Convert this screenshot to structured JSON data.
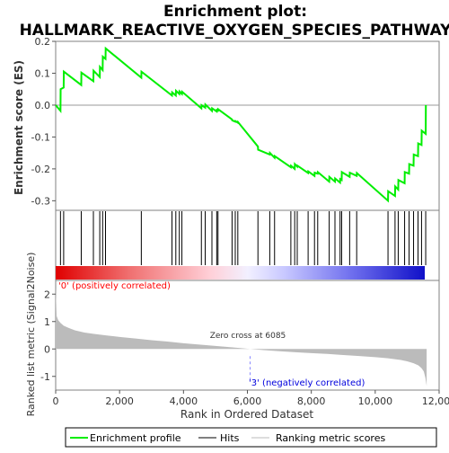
{
  "chart_data": {
    "type": "line",
    "title": "Enrichment plot:\nHALLMARK_REACTIVE_OXYGEN_SPECIES_PATHWAY",
    "title_lines": [
      "Enrichment plot:",
      "HALLMARK_REACTIVE_OXYGEN_SPECIES_PATHWAY"
    ],
    "xlabel": "Rank in Ordered Dataset",
    "xlim": [
      0,
      12000
    ],
    "x_ticks": [
      0,
      2000,
      4000,
      6000,
      8000,
      10000,
      12000
    ],
    "x_tick_labels": [
      "0",
      "2,000",
      "4,000",
      "6,000",
      "8,000",
      "10,000",
      "12,000"
    ],
    "panels": {
      "es": {
        "ylabel": "Enrichment score (ES)",
        "ylim": [
          -0.33,
          0.2
        ],
        "y_ticks": [
          0.2,
          0.1,
          0.0,
          -0.1,
          -0.2,
          -0.3
        ],
        "y_tick_labels": [
          "0.2",
          "0.1",
          "0.0",
          "-0.1",
          "-0.2",
          "-0.3"
        ],
        "zero_line": 0
      },
      "metric": {
        "ylabel": "Ranked list metric (Signal2Noise)",
        "ylim": [
          -1.5,
          2.5
        ],
        "y_ticks": [
          2,
          1,
          0,
          -1
        ],
        "y_tick_labels": [
          "2",
          "1",
          "0",
          "-1"
        ],
        "zero_cross_label": "Zero cross at 6085",
        "zero_cross_at": 6085,
        "positive_label": "'0' (positively correlated)",
        "negative_label": "'3' (negatively correlated)"
      }
    },
    "series": [
      {
        "name": "Enrichment profile",
        "color": "#00ee00",
        "x": [
          0,
          150,
          155,
          250,
          255,
          800,
          805,
          1180,
          1185,
          1380,
          1385,
          1470,
          1475,
          1560,
          1565,
          2680,
          2685,
          3640,
          3645,
          3760,
          3765,
          3870,
          3875,
          3950,
          3955,
          4560,
          4565,
          4680,
          4685,
          4890,
          4895,
          5040,
          5045,
          5080,
          5085,
          5520,
          5525,
          5620,
          5625,
          5700,
          5705,
          6330,
          6335,
          6700,
          6705,
          6850,
          6855,
          7360,
          7365,
          7480,
          7485,
          7560,
          7565,
          7900,
          7905,
          8100,
          8105,
          8200,
          8205,
          8560,
          8565,
          8740,
          8745,
          8900,
          8905,
          8950,
          8955,
          9200,
          9205,
          9420,
          9425,
          10400,
          10405,
          10620,
          10625,
          10720,
          10725,
          10920,
          10925,
          11060,
          11065,
          11200,
          11205,
          11340,
          11345,
          11450,
          11455,
          11580,
          11585
        ],
        "y": [
          0.0,
          -0.018,
          0.05,
          0.055,
          0.105,
          0.063,
          0.102,
          0.075,
          0.108,
          0.088,
          0.12,
          0.11,
          0.152,
          0.145,
          0.178,
          0.086,
          0.105,
          0.03,
          0.04,
          0.03,
          0.045,
          0.035,
          0.043,
          0.035,
          0.042,
          -0.01,
          0.0,
          -0.008,
          0.002,
          -0.018,
          -0.01,
          -0.02,
          -0.012,
          -0.02,
          -0.013,
          -0.045,
          -0.048,
          -0.052,
          -0.05,
          -0.055,
          -0.053,
          -0.13,
          -0.14,
          -0.155,
          -0.15,
          -0.165,
          -0.16,
          -0.195,
          -0.19,
          -0.2,
          -0.185,
          -0.193,
          -0.19,
          -0.213,
          -0.208,
          -0.222,
          -0.212,
          -0.215,
          -0.21,
          -0.24,
          -0.225,
          -0.24,
          -0.23,
          -0.243,
          -0.232,
          -0.235,
          -0.21,
          -0.225,
          -0.212,
          -0.222,
          -0.213,
          -0.3,
          -0.27,
          -0.285,
          -0.255,
          -0.265,
          -0.235,
          -0.245,
          -0.21,
          -0.215,
          -0.185,
          -0.19,
          -0.155,
          -0.16,
          -0.12,
          -0.125,
          -0.08,
          -0.09,
          -0.0
        ]
      },
      {
        "name": "Hits",
        "color": "#000000",
        "x": [
          150,
          250,
          800,
          1180,
          1380,
          1470,
          1560,
          2680,
          3640,
          3760,
          3870,
          3950,
          4560,
          4680,
          4890,
          5040,
          5080,
          5520,
          5620,
          5700,
          6330,
          6700,
          6850,
          7360,
          7480,
          7560,
          7900,
          8100,
          8200,
          8560,
          8740,
          8900,
          8950,
          9200,
          9420,
          10400,
          10620,
          10720,
          10920,
          11060,
          11200,
          11340,
          11450,
          11580
        ]
      },
      {
        "name": "Ranking metric scores",
        "color": "#bbbbbb",
        "x": [
          0,
          30,
          80,
          150,
          250,
          400,
          600,
          900,
          1200,
          1600,
          2000,
          2500,
          3000,
          3500,
          4000,
          4500,
          5000,
          5500,
          6085,
          6500,
          7000,
          7500,
          8000,
          8500,
          9000,
          9500,
          10000,
          10400,
          10800,
          11000,
          11200,
          11350,
          11450,
          11520,
          11570,
          11610
        ],
        "y": [
          2.25,
          1.2,
          1.05,
          0.95,
          0.85,
          0.77,
          0.68,
          0.6,
          0.55,
          0.49,
          0.44,
          0.38,
          0.32,
          0.27,
          0.21,
          0.16,
          0.11,
          0.06,
          0.0,
          -0.04,
          -0.08,
          -0.12,
          -0.15,
          -0.18,
          -0.22,
          -0.26,
          -0.3,
          -0.34,
          -0.4,
          -0.45,
          -0.52,
          -0.6,
          -0.7,
          -0.82,
          -1.05,
          -1.35
        ]
      }
    ],
    "legend": {
      "placement": "bottom",
      "entries": [
        "Enrichment profile",
        "Hits",
        "Ranking metric scores"
      ]
    },
    "colors": {
      "profile": "#00ee00",
      "hits": "#000000",
      "metric_fill": "#bbbbbb",
      "positive_label": "#ff0000",
      "negative_label": "#0000ff",
      "zero_cross_line": "#8888ff",
      "heat_positive": "#ff0000",
      "heat_negative": "#0000ff"
    }
  }
}
